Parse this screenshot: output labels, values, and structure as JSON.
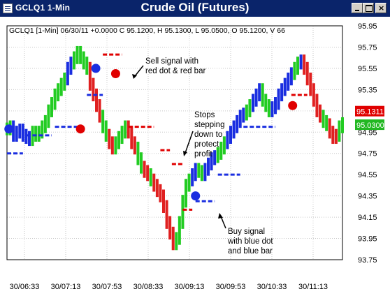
{
  "window": {
    "title": "GCLQ1 1-Min",
    "controls": [
      "minimize-icon",
      "maximize-icon",
      "close-icon"
    ]
  },
  "chart_data": {
    "type": "line",
    "title": "Crude Oil (Futures)",
    "header": "GCLQ1 [1-Min] 06/30/11 +0.0000 C 95.1200, H 95.1300, L 95.0500, O 95.1200, V 66",
    "xlabel": "",
    "ylabel": "",
    "x_ticks": [
      "30/06:33",
      "30/07:13",
      "30/07:53",
      "30/08:33",
      "30/09:13",
      "30/09:53",
      "30/10:33",
      "30/11:13"
    ],
    "y_ticks": [
      "95.95",
      "95.75",
      "95.55",
      "95.35",
      "95.15",
      "94.95",
      "94.75",
      "94.55",
      "94.35",
      "94.15",
      "93.95",
      "93.75"
    ],
    "ylim": [
      93.75,
      95.95
    ],
    "grid": true,
    "price_tags": [
      {
        "label": "95.1311",
        "color": "#e00000"
      },
      {
        "label": "95.0300",
        "color": "#22b822"
      }
    ],
    "colors": {
      "up": "#22cc22",
      "down": "#e02020",
      "buy": "#1a2ee0",
      "sell": "#e00000"
    },
    "series": [
      {
        "name": "",
        "x": [
          0,
          5,
          10,
          15,
          20,
          25,
          30,
          35,
          40,
          45,
          50,
          55,
          60,
          65,
          70,
          75,
          80,
          85,
          90,
          95,
          100,
          105,
          110,
          115,
          120,
          125,
          130,
          135,
          140,
          145,
          150,
          155,
          160,
          165,
          170,
          175,
          180,
          185,
          190,
          195,
          200,
          205,
          210,
          215,
          220,
          225,
          230,
          235,
          240,
          245,
          250,
          255,
          260,
          265,
          270,
          275,
          280,
          285,
          290,
          295,
          300,
          305,
          310,
          315,
          320,
          325,
          330,
          335,
          340,
          345,
          350,
          355,
          360,
          365,
          370,
          375,
          380,
          385,
          390,
          395,
          400,
          405,
          410,
          415,
          420,
          425,
          430,
          435,
          440,
          445,
          450,
          455,
          460,
          465,
          470,
          475,
          480,
          485,
          490,
          495,
          500,
          505,
          510,
          515,
          520,
          525
        ],
        "y": [
          94.98,
          95.0,
          94.92,
          94.95,
          94.97,
          94.92,
          94.9,
          94.88,
          94.95,
          94.92,
          94.95,
          95.0,
          95.05,
          95.15,
          95.22,
          95.3,
          95.35,
          95.4,
          95.45,
          95.55,
          95.6,
          95.65,
          95.7,
          95.65,
          95.6,
          95.55,
          95.4,
          95.3,
          95.2,
          95.1,
          95.0,
          94.92,
          94.85,
          94.8,
          94.85,
          94.9,
          94.95,
          95.0,
          94.95,
          94.85,
          94.8,
          94.7,
          94.62,
          94.58,
          94.55,
          94.5,
          94.45,
          94.4,
          94.35,
          94.25,
          94.1,
          94.0,
          93.9,
          93.95,
          94.1,
          94.3,
          94.45,
          94.5,
          94.55,
          94.6,
          94.58,
          94.55,
          94.6,
          94.65,
          94.7,
          94.72,
          94.75,
          94.8,
          94.85,
          94.9,
          94.95,
          95.0,
          95.05,
          95.1,
          95.12,
          95.15,
          95.2,
          95.25,
          95.3,
          95.35,
          95.25,
          95.2,
          95.15,
          95.18,
          95.22,
          95.3,
          95.35,
          95.4,
          95.45,
          95.5,
          95.55,
          95.6,
          95.62,
          95.55,
          95.45,
          95.35,
          95.25,
          95.15,
          95.1,
          95.05,
          95.02,
          94.95,
          94.9,
          94.92,
          95.0,
          95.03
        ],
        "colors": [
          "#22cc22",
          "#22cc22",
          "#1a2ee0",
          "#1a2ee0",
          "#1a2ee0",
          "#1a2ee0",
          "#1a2ee0",
          "#1a2ee0",
          "#22cc22",
          "#22cc22",
          "#22cc22",
          "#22cc22",
          "#22cc22",
          "#22cc22",
          "#22cc22",
          "#22cc22",
          "#22cc22",
          "#22cc22",
          "#22cc22",
          "#1a2ee0",
          "#1a2ee0",
          "#22cc22",
          "#22cc22",
          "#22cc22",
          "#22cc22",
          "#22cc22",
          "#e02020",
          "#e02020",
          "#e02020",
          "#e02020",
          "#22cc22",
          "#22cc22",
          "#e02020",
          "#e02020",
          "#22cc22",
          "#22cc22",
          "#22cc22",
          "#22cc22",
          "#e02020",
          "#e02020",
          "#e02020",
          "#22cc22",
          "#22cc22",
          "#e02020",
          "#e02020",
          "#22cc22",
          "#e02020",
          "#e02020",
          "#e02020",
          "#e02020",
          "#e02020",
          "#e02020",
          "#e02020",
          "#22cc22",
          "#22cc22",
          "#22cc22",
          "#22cc22",
          "#22cc22",
          "#1a2ee0",
          "#1a2ee0",
          "#22cc22",
          "#22cc22",
          "#1a2ee0",
          "#1a2ee0",
          "#1a2ee0",
          "#1a2ee0",
          "#22cc22",
          "#22cc22",
          "#22cc22",
          "#1a2ee0",
          "#1a2ee0",
          "#1a2ee0",
          "#1a2ee0",
          "#1a2ee0",
          "#1a2ee0",
          "#22cc22",
          "#22cc22",
          "#1a2ee0",
          "#1a2ee0",
          "#1a2ee0",
          "#22cc22",
          "#22cc22",
          "#22cc22",
          "#1a2ee0",
          "#1a2ee0",
          "#1a2ee0",
          "#1a2ee0",
          "#1a2ee0",
          "#1a2ee0",
          "#1a2ee0",
          "#22cc22",
          "#22cc22",
          "#1a2ee0",
          "#e02020",
          "#e02020",
          "#e02020",
          "#e02020",
          "#e02020",
          "#e02020",
          "#22cc22",
          "#22cc22",
          "#e02020",
          "#e02020",
          "#e02020",
          "#22cc22",
          "#22cc22"
        ]
      }
    ],
    "stop_levels": [
      {
        "side": "buy",
        "x": [
          0,
          25
        ],
        "y": 94.75
      },
      {
        "side": "buy",
        "x": [
          30,
          70
        ],
        "y": 94.92
      },
      {
        "side": "buy",
        "x": [
          75,
          120
        ],
        "y": 95.0
      },
      {
        "side": "buy",
        "x": [
          125,
          150
        ],
        "y": 95.3
      },
      {
        "side": "sell",
        "x": [
          150,
          180
        ],
        "y": 95.68
      },
      {
        "side": "sell",
        "x": [
          190,
          230
        ],
        "y": 95.0
      },
      {
        "side": "sell",
        "x": [
          240,
          255
        ],
        "y": 94.78
      },
      {
        "side": "sell",
        "x": [
          258,
          275
        ],
        "y": 94.65
      },
      {
        "side": "sell",
        "x": [
          275,
          290
        ],
        "y": 94.22
      },
      {
        "side": "buy",
        "x": [
          295,
          325
        ],
        "y": 94.3
      },
      {
        "side": "buy",
        "x": [
          330,
          365
        ],
        "y": 94.55
      },
      {
        "side": "buy",
        "x": [
          370,
          420
        ],
        "y": 95.0
      },
      {
        "side": "sell",
        "x": [
          445,
          470
        ],
        "y": 95.3
      }
    ],
    "signals": [
      {
        "side": "buy",
        "x": 3,
        "y": 94.98
      },
      {
        "side": "sell",
        "x": 115,
        "y": 94.98
      },
      {
        "side": "buy",
        "x": 139,
        "y": 95.55
      },
      {
        "side": "sell",
        "x": 170,
        "y": 95.5
      },
      {
        "side": "buy",
        "x": 295,
        "y": 94.35
      },
      {
        "side": "sell",
        "x": 447,
        "y": 95.2
      }
    ],
    "annotations": [
      {
        "text": [
          "Sell signal with",
          "red dot & red bar"
        ]
      },
      {
        "text": [
          "Stops",
          "stepping",
          "down to",
          "protect",
          "profit"
        ]
      },
      {
        "text": [
          "Buy signal",
          "with blue dot",
          "and blue bar"
        ]
      }
    ]
  }
}
